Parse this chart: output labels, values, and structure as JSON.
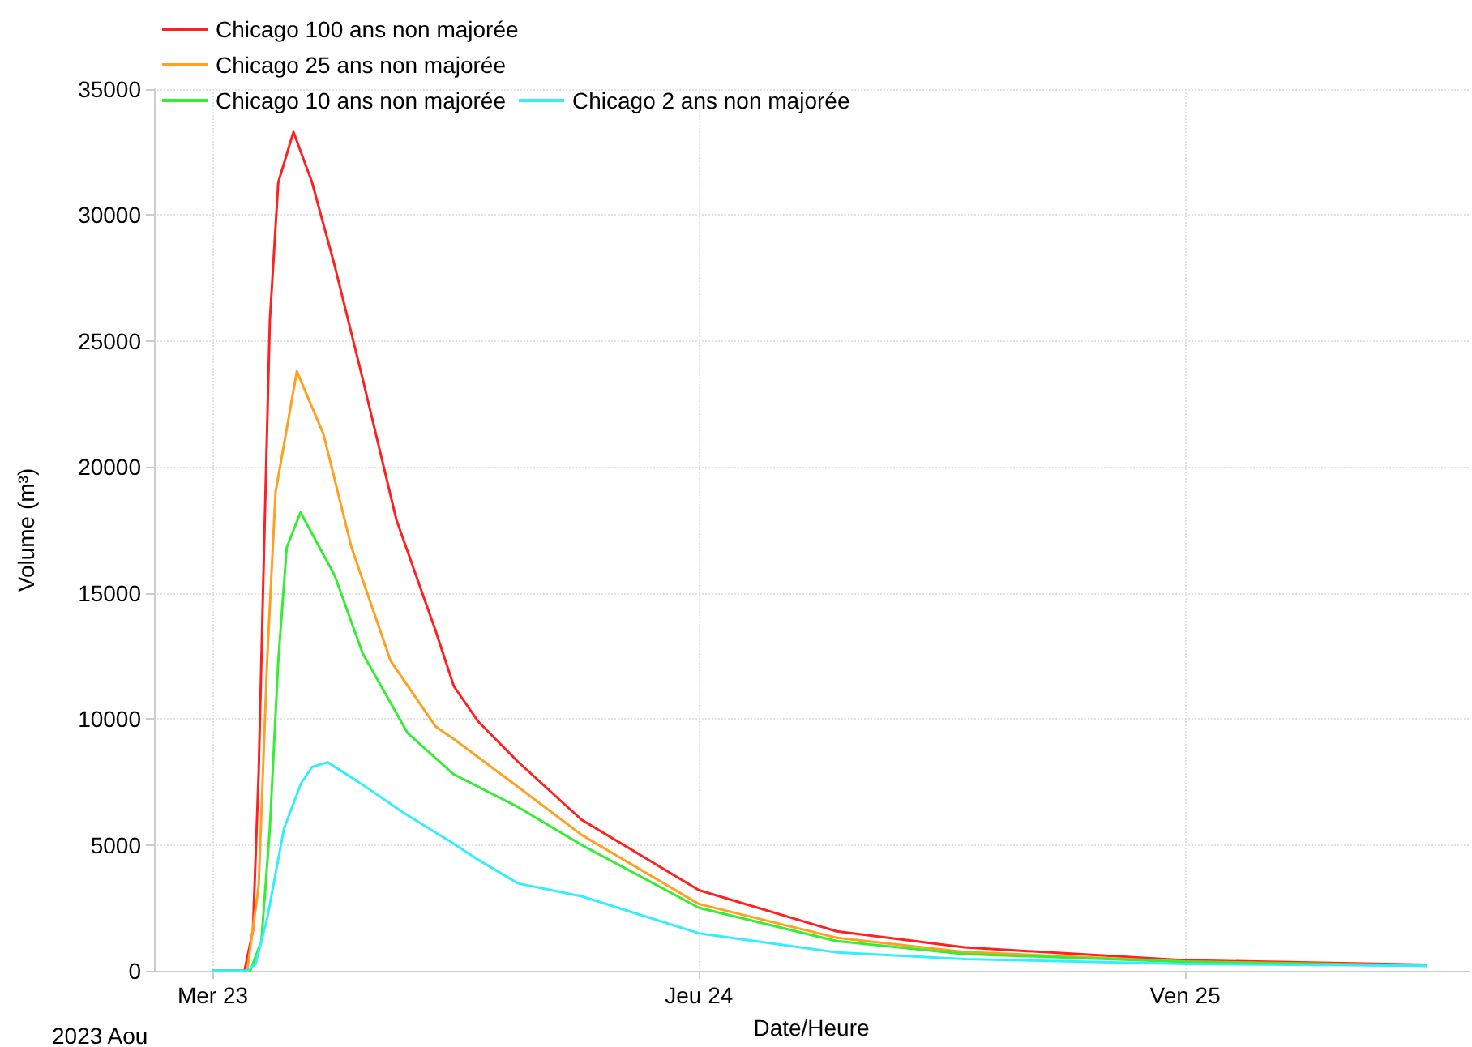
{
  "chart_data": {
    "type": "line",
    "xlabel": "Date/Heure",
    "ylabel": "Volume (m³)",
    "annotations": [
      "2023 Aou"
    ],
    "xlim": [
      "2023-08-22T21:06",
      "2023-08-25T14:00"
    ],
    "xticks": [
      {
        "value": "2023-08-23",
        "label": "Mer 23"
      },
      {
        "value": "2023-08-24",
        "label": "Jeu 24"
      },
      {
        "value": "2023-08-25",
        "label": "Ven 25"
      }
    ],
    "ylim": [
      0,
      35000
    ],
    "yticks": [
      0,
      5000,
      10000,
      15000,
      20000,
      25000,
      30000,
      35000
    ],
    "grid": true,
    "legend": "top",
    "marker": "none",
    "line_style": "solid",
    "series": [
      {
        "name": "Chicago 100 ans non majorée",
        "color": "#ff2020",
        "x": [
          "2023-08-23T00:00",
          "2023-08-23T01:34",
          "2023-08-23T01:59",
          "2023-08-23T02:16",
          "2023-08-23T02:32",
          "2023-08-23T02:49",
          "2023-08-23T03:14",
          "2023-08-23T03:59",
          "2023-08-23T04:54",
          "2023-08-23T06:01",
          "2023-08-23T07:24",
          "2023-08-23T09:04",
          "2023-08-23T11:00",
          "2023-08-23T11:54",
          "2023-08-23T13:06",
          "2023-08-23T15:04",
          "2023-08-23T18:12",
          "2023-08-24T00:00",
          "2023-08-24T06:48",
          "2023-08-24T13:06",
          "2023-08-25T00:00",
          "2023-08-25T11:54"
        ],
        "values": [
          0,
          0,
          1600,
          7900,
          16800,
          25800,
          31300,
          33300,
          31300,
          28000,
          23500,
          17900,
          13500,
          11300,
          9900,
          8300,
          6000,
          3200,
          1570,
          930,
          420,
          240
        ]
      },
      {
        "name": "Chicago 25 ans non majorée",
        "color": "#ffa020",
        "x": [
          "2023-08-23T00:00",
          "2023-08-23T01:42",
          "2023-08-23T02:16",
          "2023-08-23T02:41",
          "2023-08-23T03:06",
          "2023-08-23T04:09",
          "2023-08-23T05:28",
          "2023-08-23T06:51",
          "2023-08-23T08:47",
          "2023-08-23T11:00",
          "2023-08-23T11:54",
          "2023-08-23T15:04",
          "2023-08-23T18:12",
          "2023-08-24T00:00",
          "2023-08-24T06:48",
          "2023-08-24T13:06",
          "2023-08-25T00:00",
          "2023-08-25T11:54"
        ],
        "values": [
          0,
          0,
          3400,
          12300,
          19000,
          23800,
          21300,
          16800,
          12300,
          9700,
          9200,
          7300,
          5400,
          2650,
          1310,
          750,
          370,
          220
        ]
      },
      {
        "name": "Chicago 10 ans non majorée",
        "color": "#33ee33",
        "x": [
          "2023-08-23T00:00",
          "2023-08-23T01:51",
          "2023-08-23T02:24",
          "2023-08-23T02:49",
          "2023-08-23T03:14",
          "2023-08-23T03:39",
          "2023-08-23T04:20",
          "2023-08-23T06:01",
          "2023-08-23T07:24",
          "2023-08-23T09:37",
          "2023-08-23T11:54",
          "2023-08-23T15:04",
          "2023-08-23T18:12",
          "2023-08-24T00:00",
          "2023-08-24T06:48",
          "2023-08-24T13:06",
          "2023-08-25T00:00",
          "2023-08-25T11:54"
        ],
        "values": [
          0,
          0,
          1180,
          5650,
          12300,
          16800,
          18200,
          15700,
          12600,
          9440,
          7800,
          6500,
          5000,
          2500,
          1180,
          670,
          350,
          200
        ]
      },
      {
        "name": "Chicago 2 ans non majorée",
        "color": "#33eeff",
        "x": [
          "2023-08-23T00:00",
          "2023-08-23T01:42",
          "2023-08-23T02:07",
          "2023-08-23T02:41",
          "2023-08-23T03:31",
          "2023-08-23T04:21",
          "2023-08-23T04:54",
          "2023-08-23T05:40",
          "2023-08-23T07:07",
          "2023-08-23T09:21",
          "2023-08-23T11:54",
          "2023-08-23T13:06",
          "2023-08-23T15:04",
          "2023-08-23T18:12",
          "2023-08-24T00:00",
          "2023-08-24T06:48",
          "2023-08-24T13:06",
          "2023-08-25T00:00",
          "2023-08-25T11:54"
        ],
        "values": [
          0,
          0,
          280,
          2070,
          5650,
          7430,
          8090,
          8280,
          7540,
          6310,
          5040,
          4410,
          3470,
          2960,
          1490,
          730,
          470,
          270,
          200
        ]
      }
    ]
  }
}
